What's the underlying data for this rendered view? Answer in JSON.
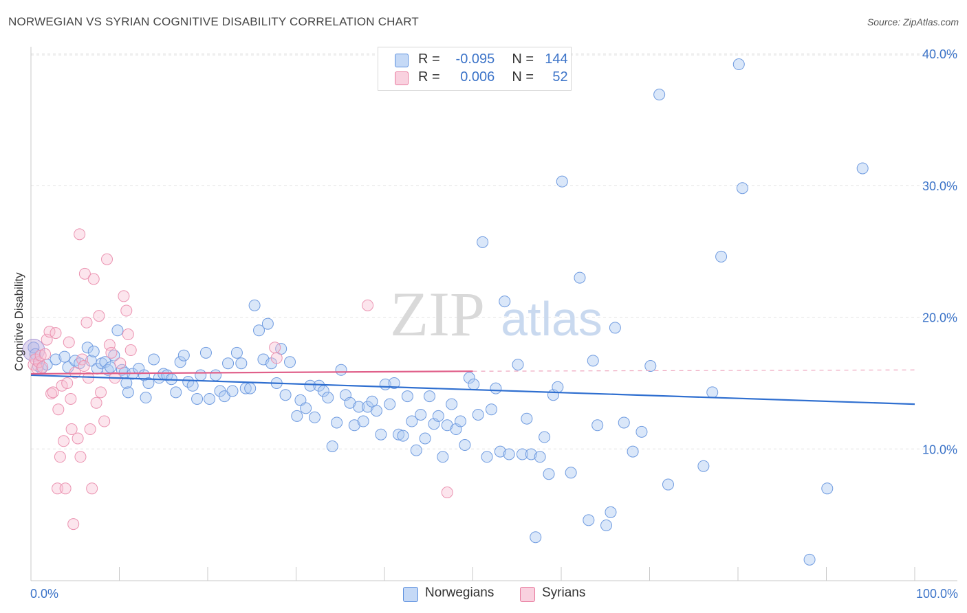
{
  "title": "NORWEGIAN VS SYRIAN COGNITIVE DISABILITY CORRELATION CHART",
  "source": "Source: ZipAtlas.com",
  "watermark": {
    "zip": "ZIP",
    "atlas": "atlas"
  },
  "legend": {
    "norwegians": {
      "r_label": "R =",
      "r_value": "-0.095",
      "n_label": "N =",
      "n_value": "144",
      "color": "#5b8fde"
    },
    "syrians": {
      "r_label": "R =",
      "r_value": "0.006",
      "n_label": "N =",
      "n_value": "52",
      "color": "#e8799d"
    }
  },
  "bottom_legend": {
    "norwegians": "Norwegians",
    "syrians": "Syrians"
  },
  "chart_data": {
    "type": "scatter",
    "title": "NORWEGIAN VS SYRIAN COGNITIVE DISABILITY CORRELATION CHART",
    "xlabel": "",
    "ylabel": "Cognitive Disability",
    "xlim": [
      0,
      100
    ],
    "ylim": [
      0,
      42
    ],
    "x_tick_labels": [
      "0.0%",
      "100.0%"
    ],
    "y_ticks": [
      10,
      20,
      30,
      40
    ],
    "y_tick_labels": [
      "10.0%",
      "20.0%",
      "30.0%",
      "40.0%"
    ],
    "grid": true,
    "series": [
      {
        "name": "Norwegians",
        "color": "#5b8fde",
        "trend": {
          "x": [
            0,
            100
          ],
          "y": [
            15.6,
            13.4
          ]
        },
        "points": [
          [
            0.3,
            17.7
          ],
          [
            0.5,
            17.2
          ],
          [
            0.8,
            16.3
          ],
          [
            1.2,
            16.1
          ],
          [
            1.8,
            16.4
          ],
          [
            2.8,
            16.8
          ],
          [
            3.8,
            17.0
          ],
          [
            4.2,
            16.2
          ],
          [
            5.0,
            16.7
          ],
          [
            5.5,
            16.5
          ],
          [
            6.4,
            17.7
          ],
          [
            6.8,
            16.7
          ],
          [
            7.1,
            17.4
          ],
          [
            7.5,
            16.1
          ],
          [
            8.0,
            16.5
          ],
          [
            8.4,
            16.6
          ],
          [
            8.7,
            16.0
          ],
          [
            9.0,
            16.2
          ],
          [
            9.4,
            17.1
          ],
          [
            9.8,
            19.0
          ],
          [
            10.3,
            16.0
          ],
          [
            10.6,
            15.8
          ],
          [
            10.8,
            15.0
          ],
          [
            11.0,
            14.3
          ],
          [
            11.5,
            15.7
          ],
          [
            12.2,
            16.1
          ],
          [
            12.8,
            15.6
          ],
          [
            13.0,
            13.9
          ],
          [
            13.3,
            15.0
          ],
          [
            13.9,
            16.8
          ],
          [
            14.5,
            15.4
          ],
          [
            15.0,
            15.7
          ],
          [
            15.4,
            15.6
          ],
          [
            15.9,
            15.3
          ],
          [
            16.4,
            14.3
          ],
          [
            16.9,
            16.6
          ],
          [
            17.3,
            17.1
          ],
          [
            17.8,
            15.1
          ],
          [
            18.3,
            14.8
          ],
          [
            18.8,
            13.8
          ],
          [
            19.2,
            15.6
          ],
          [
            19.8,
            17.3
          ],
          [
            20.2,
            13.8
          ],
          [
            20.9,
            15.6
          ],
          [
            21.4,
            14.4
          ],
          [
            21.9,
            14.0
          ],
          [
            22.3,
            16.5
          ],
          [
            22.8,
            14.4
          ],
          [
            23.3,
            17.3
          ],
          [
            23.8,
            16.5
          ],
          [
            24.3,
            14.6
          ],
          [
            24.8,
            14.6
          ],
          [
            25.3,
            20.9
          ],
          [
            25.8,
            19.0
          ],
          [
            26.3,
            16.8
          ],
          [
            26.8,
            19.5
          ],
          [
            27.2,
            16.5
          ],
          [
            27.8,
            15.0
          ],
          [
            28.3,
            17.6
          ],
          [
            28.8,
            14.1
          ],
          [
            29.3,
            16.6
          ],
          [
            30.1,
            12.5
          ],
          [
            30.5,
            13.7
          ],
          [
            31.1,
            13.1
          ],
          [
            31.6,
            14.8
          ],
          [
            32.1,
            12.4
          ],
          [
            32.6,
            14.8
          ],
          [
            33.1,
            14.4
          ],
          [
            33.6,
            13.9
          ],
          [
            34.1,
            10.2
          ],
          [
            34.6,
            12.0
          ],
          [
            35.1,
            16.0
          ],
          [
            35.6,
            14.1
          ],
          [
            36.1,
            13.5
          ],
          [
            36.6,
            11.8
          ],
          [
            37.1,
            13.2
          ],
          [
            37.6,
            12.1
          ],
          [
            38.1,
            13.2
          ],
          [
            38.6,
            13.6
          ],
          [
            39.1,
            12.9
          ],
          [
            39.6,
            11.1
          ],
          [
            40.1,
            14.9
          ],
          [
            40.6,
            13.4
          ],
          [
            41.1,
            15.0
          ],
          [
            41.6,
            11.1
          ],
          [
            42.1,
            11.0
          ],
          [
            42.6,
            14.0
          ],
          [
            43.1,
            12.1
          ],
          [
            43.6,
            9.9
          ],
          [
            44.1,
            12.6
          ],
          [
            44.6,
            10.8
          ],
          [
            45.1,
            14.0
          ],
          [
            45.6,
            11.9
          ],
          [
            46.1,
            12.5
          ],
          [
            46.6,
            9.4
          ],
          [
            47.1,
            11.8
          ],
          [
            47.6,
            13.4
          ],
          [
            48.1,
            11.5
          ],
          [
            48.6,
            12.1
          ],
          [
            49.1,
            10.3
          ],
          [
            49.6,
            15.4
          ],
          [
            50.1,
            14.9
          ],
          [
            50.6,
            12.6
          ],
          [
            51.1,
            25.7
          ],
          [
            51.6,
            9.4
          ],
          [
            52.1,
            13.0
          ],
          [
            52.6,
            14.6
          ],
          [
            53.1,
            9.8
          ],
          [
            53.6,
            21.2
          ],
          [
            54.1,
            9.6
          ],
          [
            55.1,
            16.4
          ],
          [
            55.6,
            9.6
          ],
          [
            56.1,
            12.3
          ],
          [
            56.6,
            9.6
          ],
          [
            57.1,
            3.3
          ],
          [
            57.6,
            9.4
          ],
          [
            58.1,
            10.9
          ],
          [
            58.6,
            8.1
          ],
          [
            59.1,
            14.1
          ],
          [
            59.6,
            14.7
          ],
          [
            60.1,
            30.3
          ],
          [
            61.1,
            8.2
          ],
          [
            62.1,
            23.0
          ],
          [
            63.1,
            4.6
          ],
          [
            63.6,
            16.7
          ],
          [
            64.1,
            11.8
          ],
          [
            65.1,
            4.2
          ],
          [
            65.6,
            5.2
          ],
          [
            66.1,
            19.2
          ],
          [
            67.1,
            12.0
          ],
          [
            68.1,
            9.8
          ],
          [
            69.1,
            11.3
          ],
          [
            70.1,
            16.3
          ],
          [
            71.1,
            36.9
          ],
          [
            72.1,
            7.3
          ],
          [
            76.1,
            8.7
          ],
          [
            77.1,
            14.3
          ],
          [
            78.1,
            24.6
          ],
          [
            80.1,
            39.2
          ],
          [
            80.5,
            29.8
          ],
          [
            88.1,
            1.6
          ],
          [
            90.1,
            7.0
          ],
          [
            94.1,
            31.3
          ]
        ]
      },
      {
        "name": "Syrians",
        "color": "#e8799d",
        "trend": {
          "x": [
            0,
            50
          ],
          "y": [
            15.7,
            15.9
          ]
        },
        "trend_extended": {
          "x": [
            50,
            100
          ],
          "y": [
            15.9,
            16.0
          ]
        },
        "points": [
          [
            0.3,
            16.4
          ],
          [
            0.5,
            16.8
          ],
          [
            0.7,
            16.1
          ],
          [
            0.9,
            16.6
          ],
          [
            1.1,
            17.1
          ],
          [
            1.3,
            16.2
          ],
          [
            1.6,
            17.2
          ],
          [
            1.8,
            18.3
          ],
          [
            2.1,
            18.9
          ],
          [
            2.3,
            14.2
          ],
          [
            2.5,
            14.3
          ],
          [
            2.8,
            18.8
          ],
          [
            3.0,
            7.0
          ],
          [
            3.1,
            13.0
          ],
          [
            3.3,
            9.4
          ],
          [
            3.5,
            14.8
          ],
          [
            3.7,
            10.6
          ],
          [
            3.9,
            7.0
          ],
          [
            4.1,
            15.0
          ],
          [
            4.3,
            18.1
          ],
          [
            4.5,
            13.8
          ],
          [
            4.6,
            11.5
          ],
          [
            4.8,
            4.3
          ],
          [
            5.0,
            15.8
          ],
          [
            5.3,
            10.8
          ],
          [
            5.5,
            26.3
          ],
          [
            5.6,
            9.4
          ],
          [
            5.8,
            16.8
          ],
          [
            6.0,
            16.3
          ],
          [
            6.1,
            23.3
          ],
          [
            6.3,
            19.6
          ],
          [
            6.5,
            15.4
          ],
          [
            6.7,
            11.5
          ],
          [
            6.9,
            7.0
          ],
          [
            7.1,
            22.9
          ],
          [
            7.4,
            13.5
          ],
          [
            7.7,
            20.1
          ],
          [
            7.9,
            14.3
          ],
          [
            8.3,
            12.1
          ],
          [
            8.6,
            24.4
          ],
          [
            8.9,
            17.9
          ],
          [
            9.1,
            17.3
          ],
          [
            9.5,
            15.4
          ],
          [
            10.1,
            16.5
          ],
          [
            10.5,
            21.6
          ],
          [
            10.8,
            20.5
          ],
          [
            11.0,
            18.7
          ],
          [
            11.3,
            17.5
          ],
          [
            27.6,
            17.7
          ],
          [
            27.8,
            16.9
          ],
          [
            38.1,
            20.9
          ],
          [
            47.1,
            6.7
          ]
        ]
      }
    ]
  }
}
